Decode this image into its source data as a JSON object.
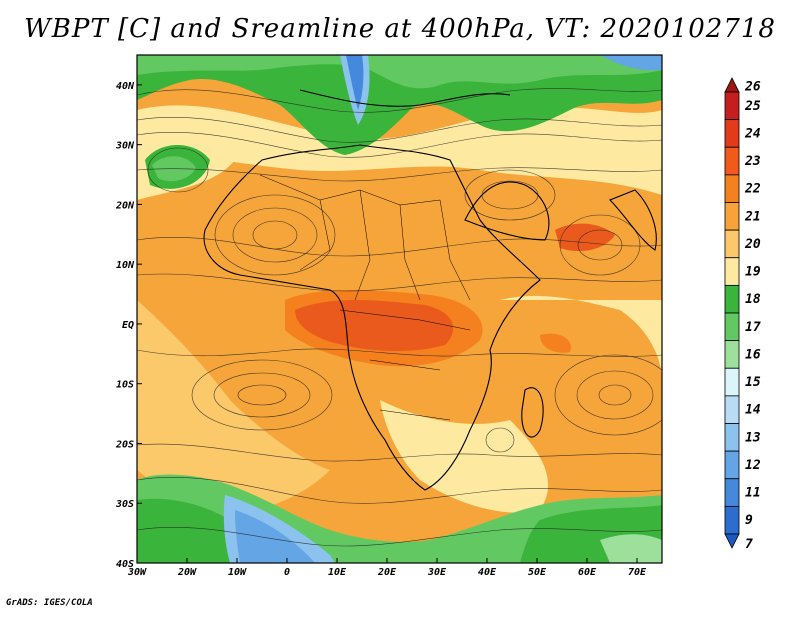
{
  "title": "WBPT [C] and Sreamline at 400hPa, VT: 2020102718",
  "credit": "GrADS: IGES/COLA",
  "map": {
    "lon_range": [
      -30,
      75
    ],
    "lat_range": [
      -40,
      45
    ],
    "lon_ticks": [
      {
        "value": -30,
        "label": "30W"
      },
      {
        "value": -20,
        "label": "20W"
      },
      {
        "value": -10,
        "label": "10W"
      },
      {
        "value": 0,
        "label": "0"
      },
      {
        "value": 10,
        "label": "10E"
      },
      {
        "value": 20,
        "label": "20E"
      },
      {
        "value": 30,
        "label": "30E"
      },
      {
        "value": 40,
        "label": "40E"
      },
      {
        "value": 50,
        "label": "50E"
      },
      {
        "value": 60,
        "label": "60E"
      },
      {
        "value": 70,
        "label": "70E"
      }
    ],
    "lat_ticks": [
      {
        "value": 40,
        "label": "40N"
      },
      {
        "value": 30,
        "label": "30N"
      },
      {
        "value": 20,
        "label": "20N"
      },
      {
        "value": 10,
        "label": "10N"
      },
      {
        "value": 0,
        "label": "EQ"
      },
      {
        "value": -10,
        "label": "10S"
      },
      {
        "value": -20,
        "label": "20S"
      },
      {
        "value": -30,
        "label": "30S"
      },
      {
        "value": -40,
        "label": "40S"
      }
    ]
  },
  "colorbar": {
    "levels": [
      {
        "label": "26",
        "color": "#a01414"
      },
      {
        "label": "25",
        "color": "#c41e1e"
      },
      {
        "label": "24",
        "color": "#e33a1a"
      },
      {
        "label": "23",
        "color": "#f25a1a"
      },
      {
        "label": "22",
        "color": "#f5801e"
      },
      {
        "label": "21",
        "color": "#f7a33a"
      },
      {
        "label": "20",
        "color": "#fbc86a"
      },
      {
        "label": "19",
        "color": "#fde9a0"
      },
      {
        "label": "18",
        "color": "#3bb43b"
      },
      {
        "label": "17",
        "color": "#62c862"
      },
      {
        "label": "16",
        "color": "#9ce09c"
      },
      {
        "label": "15",
        "color": "#dcf5fb"
      },
      {
        "label": "14",
        "color": "#b8dcf5"
      },
      {
        "label": "13",
        "color": "#8cc2ee"
      },
      {
        "label": "12",
        "color": "#64a5e6"
      },
      {
        "label": "11",
        "color": "#4489dc"
      },
      {
        "label": "9",
        "color": "#2c6ed0"
      },
      {
        "label": "7",
        "color": "#1c58c2"
      }
    ]
  },
  "colors": {
    "warm_orange": "#f6a53a",
    "light_yellow": "#fde9a0",
    "peak_red": "#ea5a1c",
    "green": "#3bb43b",
    "blue": "#64a5e6"
  }
}
